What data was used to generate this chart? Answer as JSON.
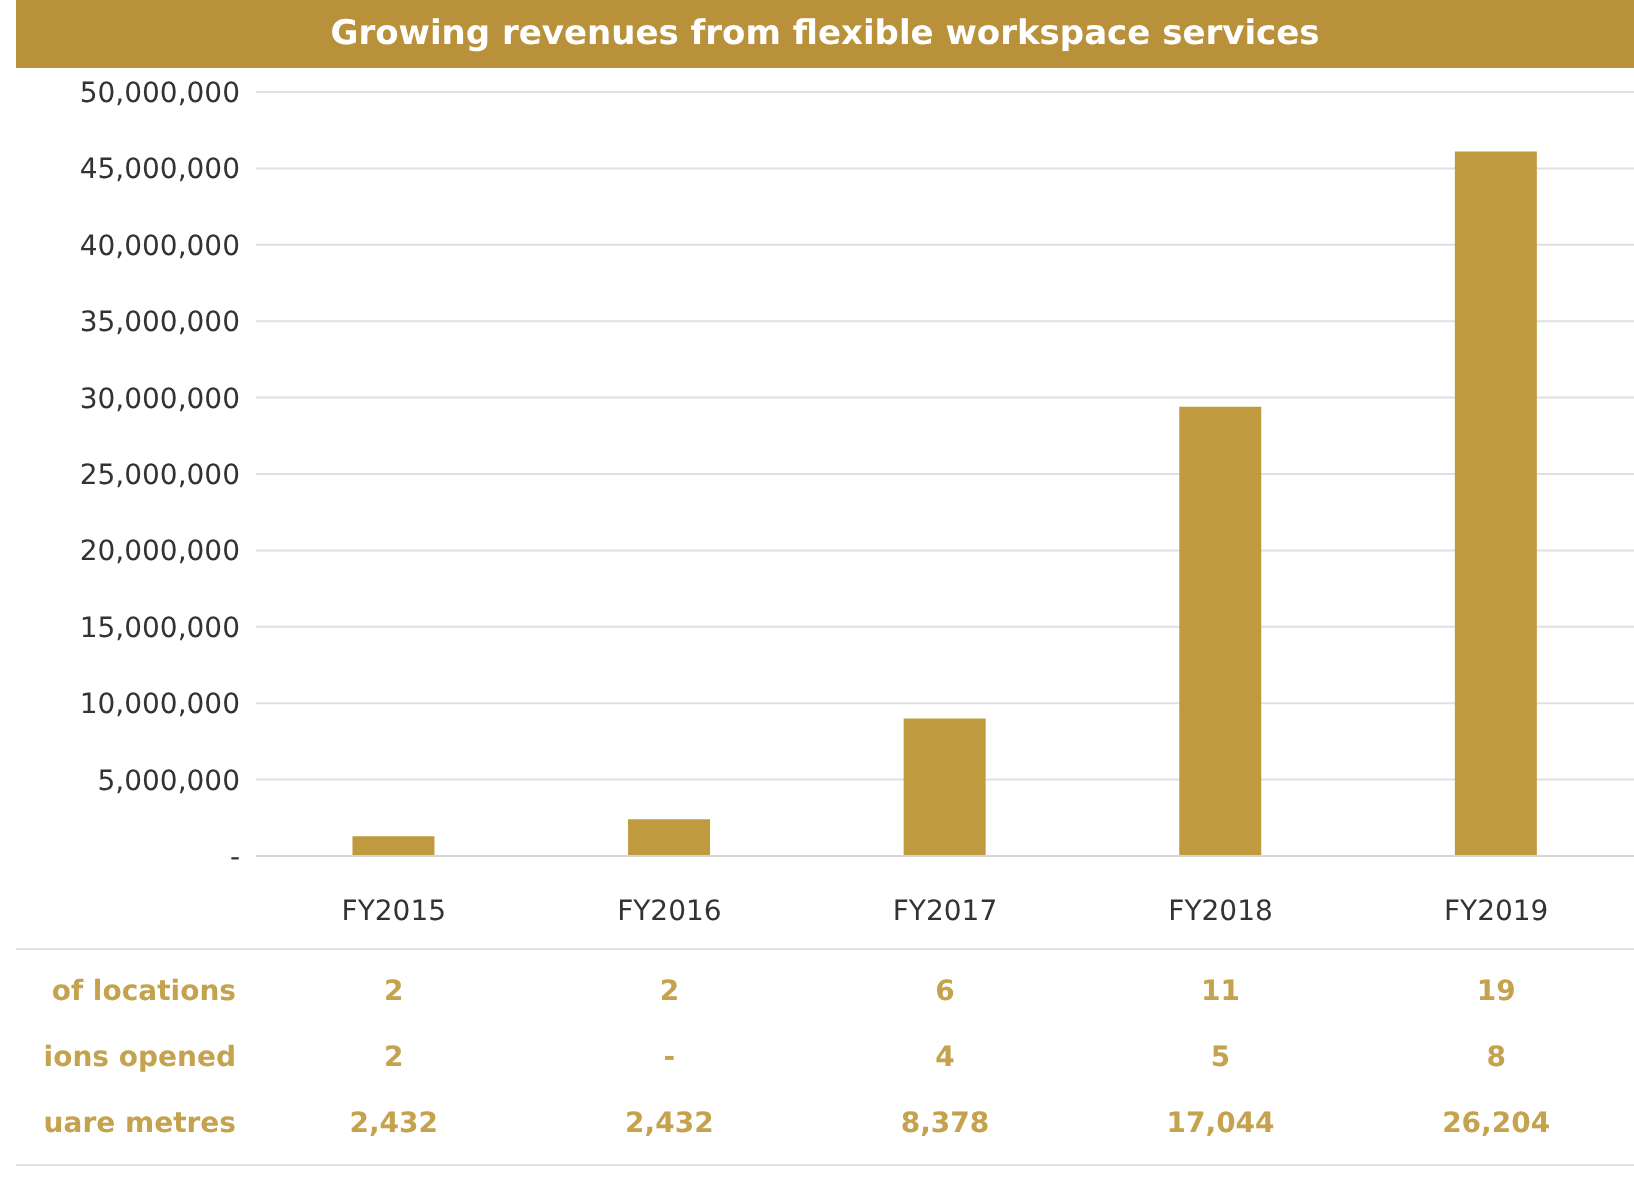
{
  "chart_data": {
    "type": "bar",
    "title": "Growing revenues from flexible workspace services",
    "categories": [
      "FY2015",
      "FY2016",
      "FY2017",
      "FY2018",
      "FY2019"
    ],
    "values": [
      1300000,
      2400000,
      9000000,
      29400000,
      46100000
    ],
    "color": "#c09a3e",
    "ylim": [
      0,
      50000000
    ],
    "yticks": [
      {
        "value": 0,
        "label": "-"
      },
      {
        "value": 5000000,
        "label": "5,000,000"
      },
      {
        "value": 10000000,
        "label": "10,000,000"
      },
      {
        "value": 15000000,
        "label": "15,000,000"
      },
      {
        "value": 20000000,
        "label": "20,000,000"
      },
      {
        "value": 25000000,
        "label": "25,000,000"
      },
      {
        "value": 30000000,
        "label": "30,000,000"
      },
      {
        "value": 35000000,
        "label": "35,000,000"
      },
      {
        "value": 40000000,
        "label": "40,000,000"
      },
      {
        "value": 45000000,
        "label": "45,000,000"
      },
      {
        "value": 50000000,
        "label": "50,000,000"
      }
    ],
    "grid": "y",
    "annotations": [
      "of locations",
      "2",
      "2",
      "6",
      "11",
      "19",
      "ions opened",
      "2",
      "-",
      "4",
      "5",
      "8",
      "uare metres",
      "2,432",
      "2,432",
      "8,378",
      "17,044",
      "26,204"
    ]
  }
}
